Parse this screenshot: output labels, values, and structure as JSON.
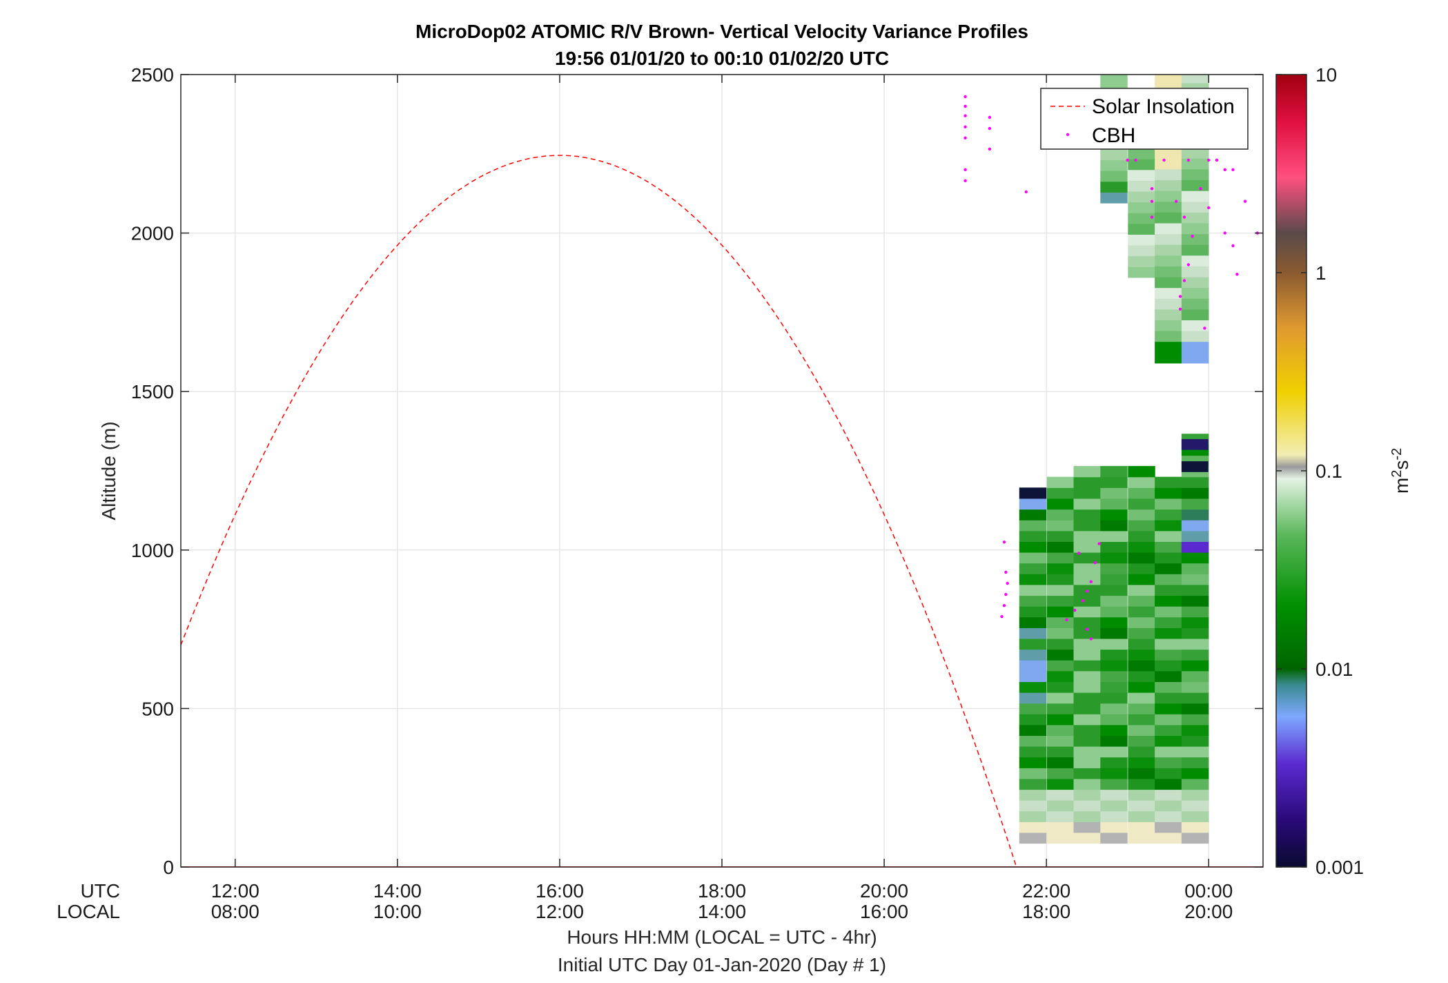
{
  "chart_data": {
    "type": "heatmap",
    "title": "MicroDop02 ATOMIC R/V Brown- Vertical Velocity Variance Profiles",
    "subtitle": "19:56 01/01/20 to 00:10 01/02/20  UTC",
    "ylabel": "Altitude (m)",
    "xlabel": "Hours HH:MM  (LOCAL = UTC - 4hr)",
    "xlabel2": "Initial UTC Day 01-Jan-2020 (Day # 1)",
    "x_row_labels": [
      "UTC",
      "LOCAL"
    ],
    "ylim": [
      0,
      2500
    ],
    "y_ticks": [
      0,
      500,
      1000,
      1500,
      2000,
      2500
    ],
    "x_range_hours": [
      11.33,
      24.67
    ],
    "x_ticks": [
      {
        "hour": 12,
        "utc": "12:00",
        "local": "08:00"
      },
      {
        "hour": 14,
        "utc": "14:00",
        "local": "10:00"
      },
      {
        "hour": 16,
        "utc": "16:00",
        "local": "12:00"
      },
      {
        "hour": 18,
        "utc": "18:00",
        "local": "14:00"
      },
      {
        "hour": 20,
        "utc": "20:00",
        "local": "16:00"
      },
      {
        "hour": 22,
        "utc": "22:00",
        "local": "18:00"
      },
      {
        "hour": 24,
        "utc": "00:00",
        "local": "20:00"
      }
    ],
    "grid": true,
    "legend_position": "top-right",
    "legend": [
      {
        "name": "Solar Insolation",
        "style": "dashed",
        "color": "#ff0000"
      },
      {
        "name": "CBH",
        "style": "dot",
        "color": "#ff00ff"
      }
    ],
    "colorbar": {
      "label": "m²s⁻²",
      "scale": "log",
      "range": [
        0.001,
        10
      ],
      "ticks": [
        "0.001",
        "0.01",
        "0.1",
        "1",
        "10"
      ]
    },
    "solar_insolation_curve": {
      "peak_hour": 16.0,
      "peak_altitude": 2245,
      "zero_hour": 21.63,
      "color": "#ff0000"
    },
    "heatmap_columns": [
      {
        "hour": 21.83,
        "bottom": 75,
        "top": 1175
      },
      {
        "hour": 22.17,
        "bottom": 75,
        "top": 1210
      },
      {
        "hour": 22.5,
        "bottom": 75,
        "top": 1245
      },
      {
        "hour": 22.83,
        "bottom": 75,
        "top": 1245,
        "upper": [
          2095,
          2500
        ]
      },
      {
        "hour": 23.17,
        "bottom": 75,
        "top": 1245,
        "upper": [
          1860,
          2245
        ]
      },
      {
        "hour": 23.5,
        "bottom": 75,
        "top": 1210,
        "upper": [
          1590,
          2500
        ]
      },
      {
        "hour": 23.83,
        "bottom": 75,
        "top": 1345,
        "upper": [
          1590,
          2500
        ]
      }
    ],
    "cbh_points": [
      {
        "hour": 21.0,
        "alt": 2430
      },
      {
        "hour": 21.0,
        "alt": 2400
      },
      {
        "hour": 21.0,
        "alt": 2370
      },
      {
        "hour": 21.0,
        "alt": 2335
      },
      {
        "hour": 21.0,
        "alt": 2300
      },
      {
        "hour": 21.0,
        "alt": 2200
      },
      {
        "hour": 21.0,
        "alt": 2165
      },
      {
        "hour": 21.3,
        "alt": 2365
      },
      {
        "hour": 21.3,
        "alt": 2330
      },
      {
        "hour": 21.3,
        "alt": 2265
      },
      {
        "hour": 21.75,
        "alt": 2130
      },
      {
        "hour": 21.48,
        "alt": 1025
      },
      {
        "hour": 21.5,
        "alt": 930
      },
      {
        "hour": 21.52,
        "alt": 895
      },
      {
        "hour": 21.5,
        "alt": 860
      },
      {
        "hour": 21.48,
        "alt": 825
      },
      {
        "hour": 21.45,
        "alt": 790
      },
      {
        "hour": 22.25,
        "alt": 780
      },
      {
        "hour": 22.35,
        "alt": 810
      },
      {
        "hour": 22.45,
        "alt": 840
      },
      {
        "hour": 22.5,
        "alt": 870
      },
      {
        "hour": 22.55,
        "alt": 900
      },
      {
        "hour": 22.6,
        "alt": 960
      },
      {
        "hour": 22.65,
        "alt": 1020
      },
      {
        "hour": 22.4,
        "alt": 990
      },
      {
        "hour": 22.5,
        "alt": 750
      },
      {
        "hour": 22.55,
        "alt": 720
      },
      {
        "hour": 23.0,
        "alt": 2230
      },
      {
        "hour": 23.1,
        "alt": 2230
      },
      {
        "hour": 23.45,
        "alt": 2230
      },
      {
        "hour": 23.75,
        "alt": 2230
      },
      {
        "hour": 24.0,
        "alt": 2230
      },
      {
        "hour": 24.1,
        "alt": 2230
      },
      {
        "hour": 24.2,
        "alt": 2200
      },
      {
        "hour": 24.3,
        "alt": 2200
      },
      {
        "hour": 23.3,
        "alt": 2140
      },
      {
        "hour": 23.3,
        "alt": 2100
      },
      {
        "hour": 23.3,
        "alt": 2050
      },
      {
        "hour": 23.6,
        "alt": 2100
      },
      {
        "hour": 23.7,
        "alt": 2050
      },
      {
        "hour": 23.8,
        "alt": 1990
      },
      {
        "hour": 23.75,
        "alt": 1900
      },
      {
        "hour": 23.7,
        "alt": 1850
      },
      {
        "hour": 23.65,
        "alt": 1800
      },
      {
        "hour": 23.65,
        "alt": 1760
      },
      {
        "hour": 23.9,
        "alt": 2140
      },
      {
        "hour": 24.0,
        "alt": 2080
      },
      {
        "hour": 24.2,
        "alt": 2000
      },
      {
        "hour": 24.3,
        "alt": 1960
      },
      {
        "hour": 24.35,
        "alt": 1870
      },
      {
        "hour": 24.45,
        "alt": 2100
      },
      {
        "hour": 24.6,
        "alt": 2000
      },
      {
        "hour": 23.95,
        "alt": 1700
      }
    ]
  }
}
